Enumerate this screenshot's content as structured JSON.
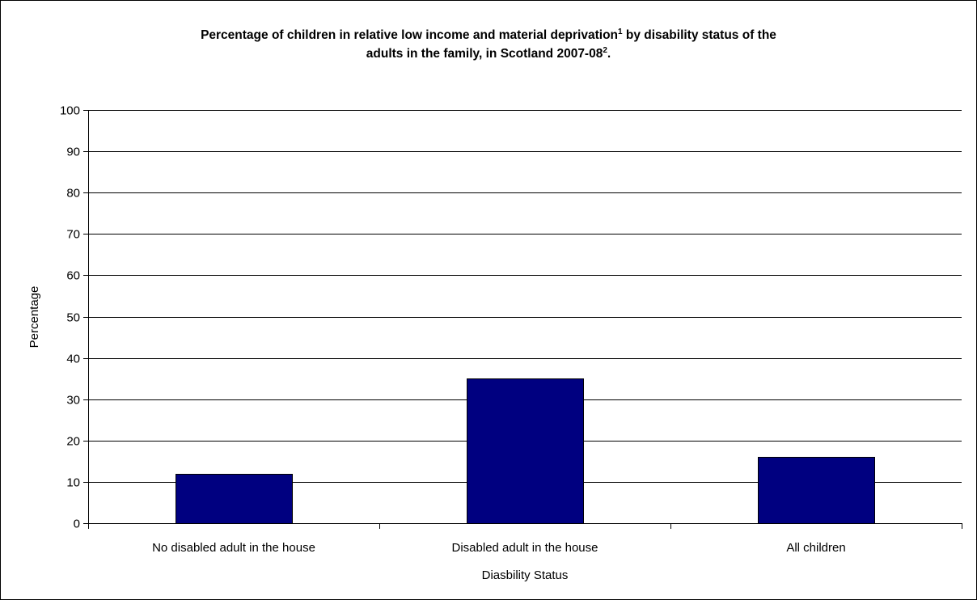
{
  "chart_data": {
    "type": "bar",
    "title_line1": {
      "text": "Percentage of children in relative low income and material deprivation",
      "sup1": "1",
      "rest": " by disability status of the"
    },
    "title_line2": {
      "text": "adults in the family, in Scotland 2007-08",
      "sup2": "2",
      "rest": "."
    },
    "xlabel": "Diasbility Status",
    "ylabel": "Percentage",
    "ylim": [
      0,
      100
    ],
    "yticks": [
      "0",
      "10",
      "20",
      "30",
      "40",
      "50",
      "60",
      "70",
      "80",
      "90",
      "100"
    ],
    "categories": [
      "No disabled adult in the house",
      "Disabled adult in the house",
      "All children"
    ],
    "values": [
      12,
      35,
      16
    ],
    "bar_color": "#000080",
    "grid": true,
    "legend": "none"
  }
}
